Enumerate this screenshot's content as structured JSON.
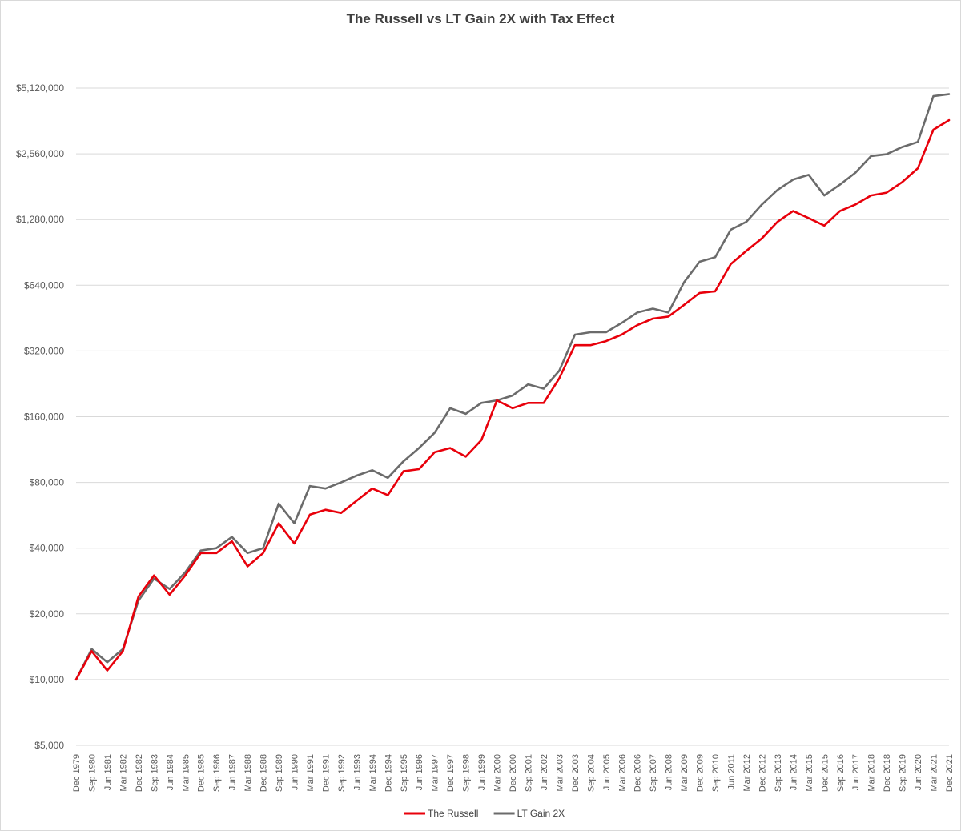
{
  "chart_data": {
    "type": "line",
    "title": "The Russell vs LT Gain 2X with Tax Effect",
    "xlabel": "",
    "ylabel": "",
    "y_scale": "log2",
    "ylim": [
      5000,
      5120000
    ],
    "y_ticks": [
      5000,
      10000,
      20000,
      40000,
      80000,
      160000,
      320000,
      640000,
      1280000,
      2560000,
      5120000
    ],
    "y_tick_labels": [
      "$5,000",
      "$10,000",
      "$20,000",
      "$40,000",
      "$80,000",
      "$160,000",
      "$320,000",
      "$640,000",
      "$1,280,000",
      "$2,560,000",
      "$5,120,000"
    ],
    "x_tick_labels": [
      "Dec 1979",
      "Sep 1980",
      "Jun 1981",
      "Mar 1982",
      "Dec 1982",
      "Sep 1983",
      "Jun 1984",
      "Mar 1985",
      "Dec 1985",
      "Sep 1986",
      "Jun 1987",
      "Mar 1988",
      "Dec 1988",
      "Sep 1989",
      "Jun 1990",
      "Mar 1991",
      "Dec 1991",
      "Sep 1992",
      "Jun 1993",
      "Mar 1994",
      "Dec 1994",
      "Sep 1995",
      "Jun 1996",
      "Mar 1997",
      "Dec 1997",
      "Sep 1998",
      "Jun 1999",
      "Mar 2000",
      "Dec 2000",
      "Sep 2001",
      "Jun 2002",
      "Mar 2003",
      "Dec 2003",
      "Sep 2004",
      "Jun 2005",
      "Mar 2006",
      "Dec 2006",
      "Sep 2007",
      "Jun 2008",
      "Mar 2009",
      "Dec 2009",
      "Sep 2010",
      "Jun 2011",
      "Mar 2012",
      "Dec 2012",
      "Sep 2013",
      "Jun 2014",
      "Mar 2015",
      "Dec 2015",
      "Sep 2016",
      "Jun 2017",
      "Mar 2018",
      "Dec 2018",
      "Sep 2019",
      "Jun 2020",
      "Mar 2021",
      "Dec 2021"
    ],
    "x": [
      "1979-12",
      "1980-09",
      "1981-06",
      "1982-03",
      "1982-12",
      "1983-09",
      "1984-06",
      "1985-03",
      "1985-12",
      "1986-09",
      "1987-06",
      "1988-03",
      "1988-12",
      "1989-09",
      "1990-06",
      "1991-03",
      "1991-12",
      "1992-09",
      "1993-06",
      "1994-03",
      "1994-12",
      "1995-09",
      "1996-06",
      "1997-03",
      "1997-12",
      "1998-09",
      "1999-06",
      "2000-03",
      "2000-12",
      "2001-09",
      "2002-06",
      "2003-03",
      "2003-12",
      "2004-09",
      "2005-06",
      "2006-03",
      "2006-12",
      "2007-09",
      "2008-06",
      "2009-03",
      "2009-12",
      "2010-09",
      "2011-06",
      "2012-03",
      "2012-12",
      "2013-09",
      "2014-06",
      "2015-03",
      "2015-12",
      "2016-09",
      "2017-06",
      "2018-03",
      "2018-12",
      "2019-09",
      "2020-06",
      "2021-03",
      "2021-12"
    ],
    "series": [
      {
        "name": "The Russell",
        "color": "#e8000b",
        "values": [
          10000,
          13500,
          11000,
          13500,
          24000,
          30000,
          24500,
          30000,
          38000,
          38000,
          43000,
          33000,
          38000,
          52000,
          42000,
          57000,
          60000,
          58000,
          66000,
          75000,
          70000,
          90000,
          92000,
          110000,
          115000,
          105000,
          125000,
          190000,
          175000,
          185000,
          185000,
          240000,
          340000,
          340000,
          355000,
          380000,
          420000,
          450000,
          460000,
          520000,
          590000,
          600000,
          800000,
          920000,
          1050000,
          1250000,
          1400000,
          1300000,
          1200000,
          1400000,
          1500000,
          1650000,
          1700000,
          1900000,
          2200000,
          3300000,
          3650000
        ]
      },
      {
        "name": "LT Gain 2X",
        "color": "#6b6b6b",
        "values": [
          10000,
          13800,
          12000,
          13800,
          23000,
          29000,
          26000,
          31000,
          39000,
          40000,
          45000,
          38000,
          40000,
          64000,
          52000,
          77000,
          75000,
          80000,
          86000,
          91000,
          84000,
          100000,
          115000,
          135000,
          175000,
          165000,
          185000,
          190000,
          200000,
          225000,
          215000,
          260000,
          380000,
          390000,
          390000,
          430000,
          480000,
          500000,
          480000,
          660000,
          820000,
          860000,
          1150000,
          1250000,
          1500000,
          1750000,
          1950000,
          2050000,
          1650000,
          1850000,
          2100000,
          2500000,
          2550000,
          2750000,
          2900000,
          4700000,
          4800000
        ]
      }
    ],
    "legend": {
      "position": "bottom",
      "entries": [
        "The Russell",
        "LT Gain 2X"
      ]
    },
    "grid": {
      "y": true,
      "x": false
    }
  }
}
